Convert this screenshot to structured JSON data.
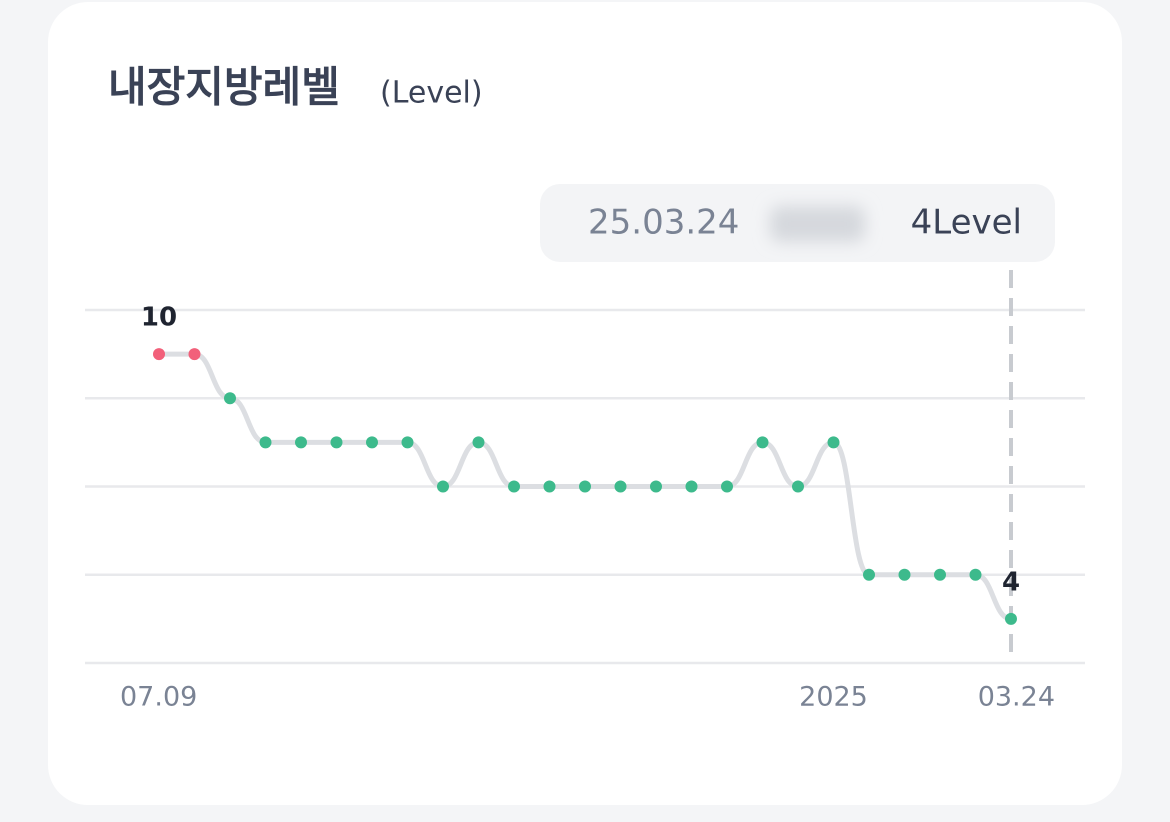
{
  "chart_data": {
    "type": "line",
    "title": "내장지방레벨",
    "subtitle": "(Level)",
    "categories": [
      "07.09",
      null,
      null,
      null,
      null,
      null,
      null,
      null,
      null,
      null,
      null,
      null,
      null,
      null,
      null,
      null,
      null,
      null,
      null,
      "2025",
      null,
      null,
      null,
      null,
      "03.24"
    ],
    "values": [
      10,
      10,
      9,
      8,
      8,
      8,
      8,
      8,
      7,
      8,
      7,
      7,
      7,
      7,
      7,
      7,
      7,
      8,
      7,
      8,
      5,
      5,
      5,
      5,
      4
    ],
    "line_color": "#dcdee2",
    "point_colors": [
      "#f2607a",
      "#f2607a",
      "#3dba8c",
      "#3dba8c",
      "#3dba8c",
      "#3dba8c",
      "#3dba8c",
      "#3dba8c",
      "#3dba8c",
      "#3dba8c",
      "#3dba8c",
      "#3dba8c",
      "#3dba8c",
      "#3dba8c",
      "#3dba8c",
      "#3dba8c",
      "#3dba8c",
      "#3dba8c",
      "#3dba8c",
      "#3dba8c",
      "#3dba8c",
      "#3dba8c",
      "#3dba8c",
      "#3dba8c",
      "#3dba8c"
    ],
    "ylim": [
      3,
      11
    ],
    "yticks": [
      3,
      5,
      7,
      9,
      11
    ],
    "grid": true,
    "tooltip": {
      "date": "25.03.24",
      "label": "4Level"
    }
  }
}
